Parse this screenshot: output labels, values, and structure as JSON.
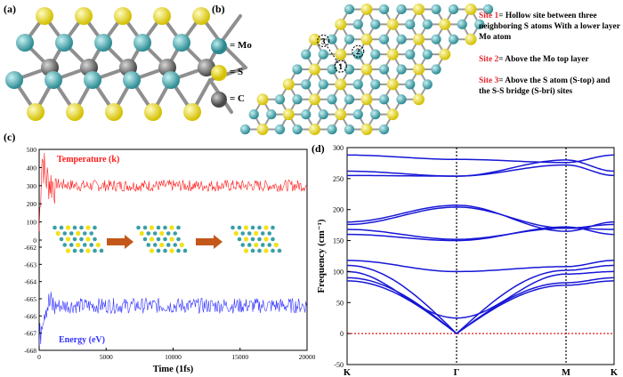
{
  "panels": {
    "a": {
      "label": "(a)",
      "legend": [
        {
          "symbol": "Mo",
          "text": "= Mo",
          "color": "#3a9ea6"
        },
        {
          "symbol": "S",
          "text": "= S",
          "color": "#f1e21a"
        },
        {
          "symbol": "C",
          "text": "= C",
          "color": "#6b6b6b"
        }
      ]
    },
    "b": {
      "label": "(b)",
      "markers": [
        "1",
        "2",
        "3"
      ],
      "sites": [
        {
          "name": "Site 1",
          "desc": "= Hollow site between three neighboring S atoms With a lower layer Mo atom"
        },
        {
          "name": "Site 2",
          "desc": "= Above the Mo top layer"
        },
        {
          "name": "Site 3",
          "desc": "= Above the S atom (S-top) and the S-S bridge (S-bri) sites"
        }
      ]
    },
    "c": {
      "label": "(c)",
      "temp_label": "Temperature (k)",
      "energy_label": "Energy (eV)"
    },
    "d": {
      "label": "(d)"
    }
  },
  "colors": {
    "mo": "#3a9ea6",
    "s": "#f1e21a",
    "c": "#6b6b6b",
    "temperature": "#ff1a1a",
    "energy": "#3333ff",
    "bands": "#1717d6",
    "site_red": "#e8262b",
    "arrow": "#c4581b"
  },
  "chart_data": [
    {
      "type": "line",
      "xlabel": "Time (1fs)",
      "xlim": [
        0,
        20000
      ],
      "x_ticks": [
        "0",
        "5000",
        "10000",
        "15000",
        "20000"
      ],
      "temperature_ticks": [
        "500",
        "400",
        "300",
        "200",
        "100",
        "0"
      ],
      "energy_ticks": [
        "-662",
        "-663",
        "-664",
        "-665",
        "-666",
        "-667",
        "-668"
      ],
      "series": [
        {
          "name": "Temperature (k)",
          "axis": "temperature",
          "ylim": [
            0,
            500
          ],
          "mean": 300,
          "x": [
            0,
            200,
            500,
            1000,
            2000,
            3000,
            5000,
            8000,
            12000,
            16000,
            20000
          ],
          "values": [
            50,
            470,
            340,
            310,
            305,
            300,
            300,
            300,
            300,
            300,
            300
          ]
        },
        {
          "name": "Energy (eV)",
          "axis": "energy",
          "ylim": [
            -668,
            -662
          ],
          "mean": -665.4,
          "x": [
            0,
            200,
            500,
            1000,
            2000,
            3000,
            5000,
            8000,
            12000,
            16000,
            20000
          ],
          "values": [
            -667.8,
            -666.0,
            -665.3,
            -665.4,
            -665.4,
            -665.4,
            -665.4,
            -665.4,
            -665.4,
            -665.4,
            -665.4
          ]
        }
      ]
    },
    {
      "type": "line",
      "ylabel": "Frequency (cm⁻¹)",
      "ylim": [
        -50,
        300
      ],
      "y_ticks": [
        "300",
        "250",
        "200",
        "150",
        "100",
        "50",
        "0",
        "-50"
      ],
      "categories": [
        "K",
        "Γ",
        "M",
        "K"
      ],
      "kpath": [
        0,
        0.41,
        0.82,
        1.0
      ],
      "series": [
        {
          "values": [
            288,
            281,
            276,
            288
          ]
        },
        {
          "values": [
            262,
            254,
            280,
            262
          ]
        },
        {
          "values": [
            255,
            254,
            272,
            255
          ]
        },
        {
          "values": [
            180,
            207,
            165,
            180
          ]
        },
        {
          "values": [
            176,
            204,
            170,
            176
          ]
        },
        {
          "values": [
            168,
            152,
            170,
            168
          ]
        },
        {
          "values": [
            160,
            150,
            172,
            160
          ]
        },
        {
          "values": [
            118,
            100,
            108,
            118
          ]
        },
        {
          "values": [
            110,
            0,
            102,
            110
          ]
        },
        {
          "values": [
            100,
            25,
            96,
            100
          ]
        },
        {
          "values": [
            90,
            0,
            82,
            90
          ]
        },
        {
          "values": [
            85,
            0,
            78,
            85
          ]
        }
      ]
    }
  ]
}
